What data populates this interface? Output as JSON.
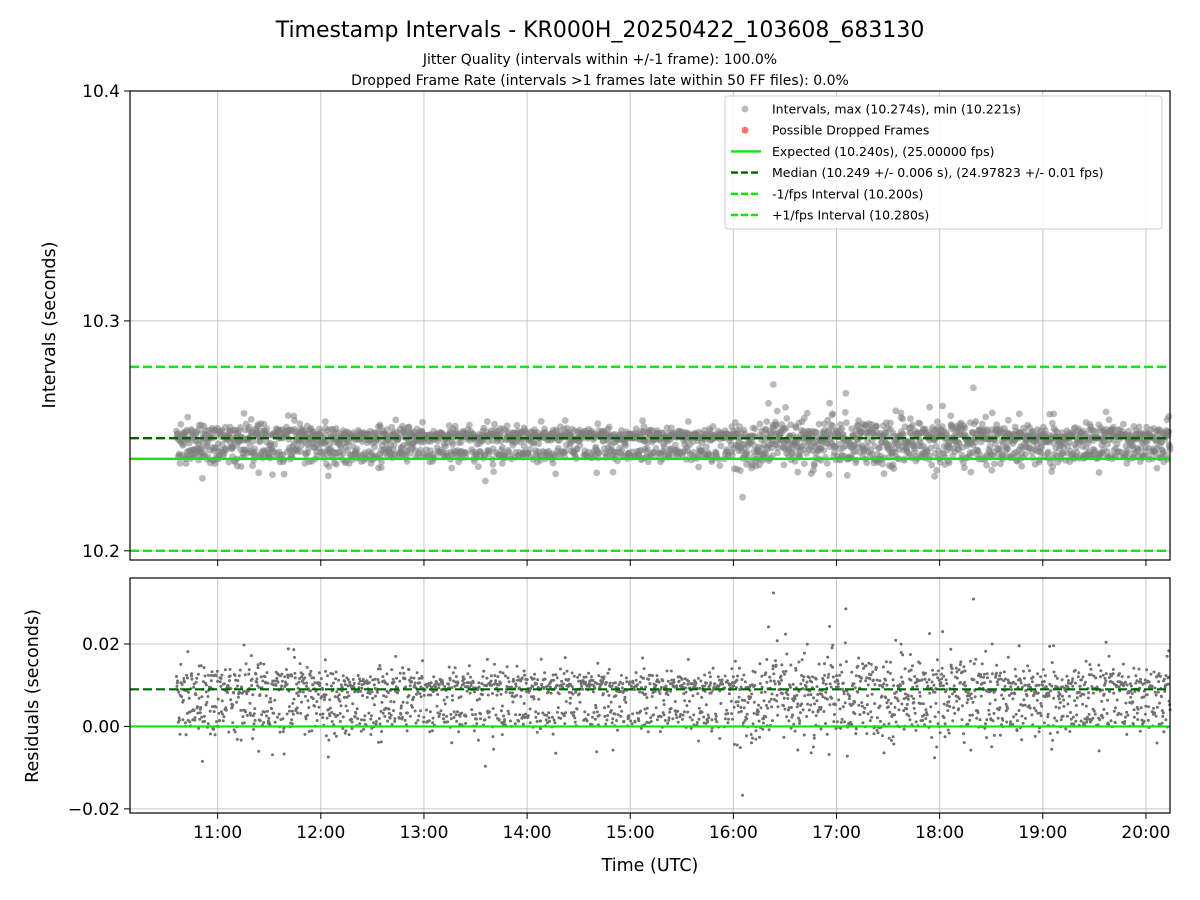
{
  "chart_data": [
    {
      "type": "scatter",
      "panel": "intervals",
      "title": "Timestamp Intervals - KR000H_20250422_103608_683130",
      "subtitle_lines": [
        "Jitter Quality (intervals within +/-1 frame): 100.0%",
        "Dropped Frame Rate (intervals >1 frames late within 50 FF files): 0.0%"
      ],
      "ylabel": "Intervals (seconds)",
      "xlim": [
        "10:09",
        "20:14"
      ],
      "ylim": [
        10.196,
        10.4
      ],
      "yticks": [
        10.2,
        10.3,
        10.4
      ],
      "ytick_labels": [
        "10.2",
        "10.3",
        "10.4"
      ],
      "grid": true,
      "legend_position": "top-right",
      "legend": [
        {
          "label": "Intervals, max (10.274s), min (10.221s)",
          "kind": "marker",
          "color": "#808080"
        },
        {
          "label": "Possible Dropped Frames",
          "kind": "marker",
          "color": "#ff4d4d"
        },
        {
          "label": "Expected (10.240s), (25.00000 fps)",
          "kind": "solid",
          "color": "#00ee00"
        },
        {
          "label": "Median (10.249 +/- 0.006 s), (24.97823 +/- 0.01 fps)",
          "kind": "dashed",
          "color": "#006400"
        },
        {
          "label": "-1/fps Interval (10.200s)",
          "kind": "dashed",
          "color": "#00ee00"
        },
        {
          "label": "+1/fps Interval (10.280s)",
          "kind": "dashed",
          "color": "#00ee00"
        }
      ],
      "reference_lines": {
        "expected": 10.24,
        "median": 10.249,
        "minus_1_fps": 10.2,
        "plus_1_fps": 10.28
      },
      "series": {
        "intervals": {
          "time_range": [
            "10:36",
            "20:14"
          ],
          "max": 10.274,
          "min": 10.221,
          "bands": [
            10.25,
            10.242
          ],
          "spread": [
            {
              "from": "10:36",
              "to": "13:00",
              "sd": 0.004
            },
            {
              "from": "13:00",
              "to": "16:00",
              "sd": 0.0025
            },
            {
              "from": "16:00",
              "to": "18:40",
              "sd": 0.0055
            },
            {
              "from": "18:40",
              "to": "20:14",
              "sd": 0.0035
            }
          ]
        },
        "dropped_frames": []
      }
    },
    {
      "type": "scatter",
      "panel": "residuals",
      "xlabel": "Time (UTC)",
      "ylabel": "Residuals (seconds)",
      "xlim": [
        "10:09",
        "20:14"
      ],
      "ylim": [
        -0.021,
        0.036
      ],
      "xticks": [
        "11:00",
        "12:00",
        "13:00",
        "14:00",
        "15:00",
        "16:00",
        "17:00",
        "18:00",
        "19:00",
        "20:00"
      ],
      "yticks": [
        -0.02,
        0.0,
        0.02
      ],
      "ytick_labels": [
        "−0.02",
        "0.00",
        "0.02"
      ],
      "grid": true,
      "reference_lines": {
        "zero": 0.0,
        "median_offset": 0.009
      },
      "series": {
        "residuals": {
          "max": 0.034,
          "min": -0.019
        }
      }
    }
  ],
  "colors": {
    "points": "#808080",
    "dropped": "#ff4d4d",
    "expected": "#00ee00",
    "median": "#006400",
    "grid": "#b0b0b0"
  }
}
